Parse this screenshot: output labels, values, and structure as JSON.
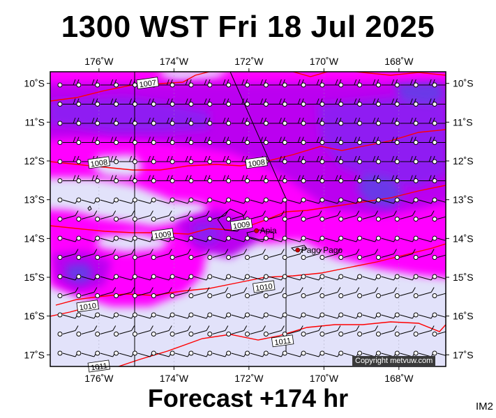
{
  "title": "1300 WST Fri 18 Jul 2025",
  "forecast_label": "Forecast +174 hr",
  "corner_tag": "IM2",
  "copyright": "Copyright metvuw.com",
  "map": {
    "lon_labels": [
      "176˚W",
      "174˚W",
      "172˚W",
      "170˚W",
      "168˚W"
    ],
    "lon_values": [
      -176,
      -174,
      -172,
      -170,
      -168
    ],
    "lat_labels": [
      "10˚S",
      "11˚S",
      "12˚S",
      "13˚S",
      "14˚S",
      "15˚S",
      "16˚S",
      "17˚S"
    ],
    "lat_values": [
      -10,
      -11,
      -12,
      -13,
      -14,
      -15,
      -16,
      -17
    ],
    "places": [
      {
        "name": "Apia",
        "lon": -171.8,
        "lat": -13.8
      },
      {
        "name": "Pago Pago",
        "lon": -170.7,
        "lat": -14.3
      }
    ],
    "isobar_labels": [
      {
        "text": "1007",
        "lon": -174.7,
        "lat": -10.0
      },
      {
        "text": "1008",
        "lon": -176.0,
        "lat": -12.05
      },
      {
        "text": "1008",
        "lon": -171.8,
        "lat": -12.05
      },
      {
        "text": "1009",
        "lon": -172.2,
        "lat": -13.65
      },
      {
        "text": "1009",
        "lon": -174.3,
        "lat": -13.9
      },
      {
        "text": "1010",
        "lon": -171.6,
        "lat": -15.25
      },
      {
        "text": "1010",
        "lon": -176.3,
        "lat": -15.75
      },
      {
        "text": "1011",
        "lon": -171.1,
        "lat": -16.65
      },
      {
        "text": "1011",
        "lon": -176.0,
        "lat": -17.3
      }
    ],
    "colors": {
      "background": "#e2e2fa",
      "magenta": "#ff00ff",
      "violet": "#bb00f0",
      "purple": "#8f1bf2",
      "deep_purple": "#6a38e8",
      "isobar": "#ff0000",
      "barb": "#000000",
      "place": "#cc0000"
    }
  }
}
